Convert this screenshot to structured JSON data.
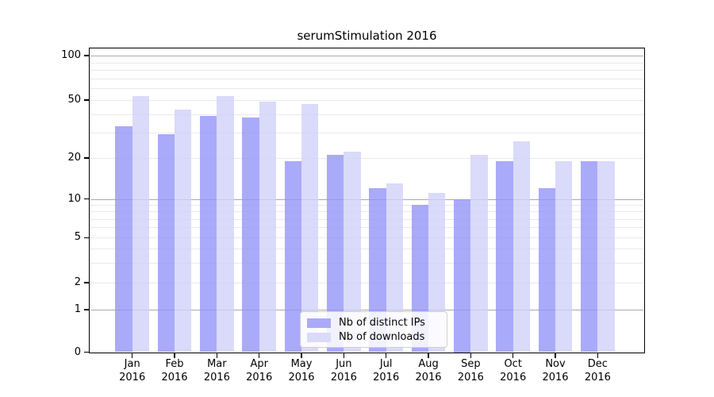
{
  "title": "serumStimulation 2016",
  "colors": {
    "bar_ips_base": "rgba(146,146,248,0.78)",
    "bar_downloads_base": "rgba(208,208,248,0.78)",
    "legend_ips": "#aaaafa",
    "legend_downloads": "#dadafa",
    "grid_minor": "#eaeaea",
    "grid_major": "#ababab",
    "spine": "#000000"
  },
  "legend": {
    "items": [
      {
        "label": "Nb of distinct IPs",
        "series": "ips"
      },
      {
        "label": "Nb of downloads",
        "series": "downloads"
      }
    ]
  },
  "y_axis": {
    "tick_labels": [
      "100",
      "50",
      "20",
      "10",
      "5",
      "2",
      "1",
      "0"
    ]
  },
  "x_axis": {
    "tick_labels": [
      "Jan 2016",
      "Feb 2016",
      "Mar 2016",
      "Apr 2016",
      "May 2016",
      "Jun 2016",
      "Jul 2016",
      "Aug 2016",
      "Sep 2016",
      "Oct 2016",
      "Nov 2016",
      "Dec 2016"
    ]
  },
  "chart_data": {
    "type": "bar",
    "title": "serumStimulation 2016",
    "categories": [
      "Jan 2016",
      "Feb 2016",
      "Mar 2016",
      "Apr 2016",
      "May 2016",
      "Jun 2016",
      "Jul 2016",
      "Aug 2016",
      "Sep 2016",
      "Oct 2016",
      "Nov 2016",
      "Dec 2016"
    ],
    "series": [
      {
        "name": "Nb of distinct IPs",
        "color": "#aaaafa",
        "values": [
          33,
          29,
          39,
          38,
          19,
          21,
          12,
          9,
          10,
          19,
          12,
          19
        ]
      },
      {
        "name": "Nb of downloads",
        "color": "#dadafa",
        "values": [
          53,
          43,
          53,
          49,
          47,
          22,
          13,
          11,
          21,
          26,
          19,
          19
        ]
      }
    ],
    "yscale": "symlog",
    "y_ticks": [
      0,
      1,
      2,
      5,
      10,
      20,
      50,
      100
    ],
    "ylim": [
      0,
      110
    ],
    "grid": "horizontal, log minors light + decade majors darker",
    "legend_position": "lower center"
  }
}
